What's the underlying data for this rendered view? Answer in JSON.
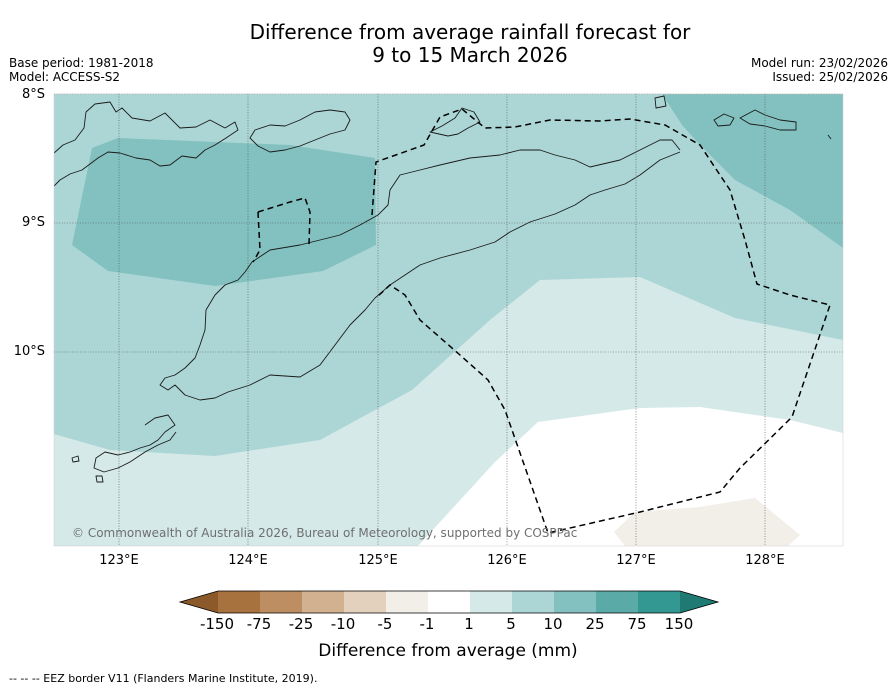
{
  "title": {
    "line1": "Difference from average rainfall forecast for",
    "line2": "9 to 15 March 2026"
  },
  "meta_left": {
    "base_period": "Base period: 1981-2018",
    "model": "Model: ACCESS-S2"
  },
  "meta_right": {
    "model_run": "Model run: 23/02/2026",
    "issued": "Issued: 25/02/2026"
  },
  "map": {
    "lat_labels": [
      "8°S",
      "9°S",
      "10°S"
    ],
    "lon_labels": [
      "123°E",
      "124°E",
      "125°E",
      "126°E",
      "127°E",
      "128°E"
    ],
    "copyright": "© Commonwealth of Australia 2026, Bureau of Meteorology, supported by COSPPac"
  },
  "colorbar": {
    "title": "Difference from average (mm)",
    "tick_labels": [
      "-150",
      "-75",
      "-25",
      "-10",
      "-5",
      "-1",
      "1",
      "5",
      "10",
      "25",
      "75",
      "150"
    ],
    "colors": {
      "neg_extreme": "#8c5a2a",
      "neg_150_75": "#a8723f",
      "neg_75_25": "#bc8e62",
      "neg_25_10": "#d2b191",
      "neg_10_5": "#e3d1bd",
      "neg_5_1": "#f2eee8",
      "neutral": "#ffffff",
      "pos_1_5": "#d4e9e8",
      "pos_5_10": "#acd6d5",
      "pos_10_25": "#82c1bf",
      "pos_25_75": "#5aaaa7",
      "pos_75_150": "#349892",
      "pos_extreme": "#1f7a74"
    }
  },
  "footer": {
    "eez_note": "--  --  -- EEZ border V11 (Flanders Marine Institute, 2019)."
  }
}
